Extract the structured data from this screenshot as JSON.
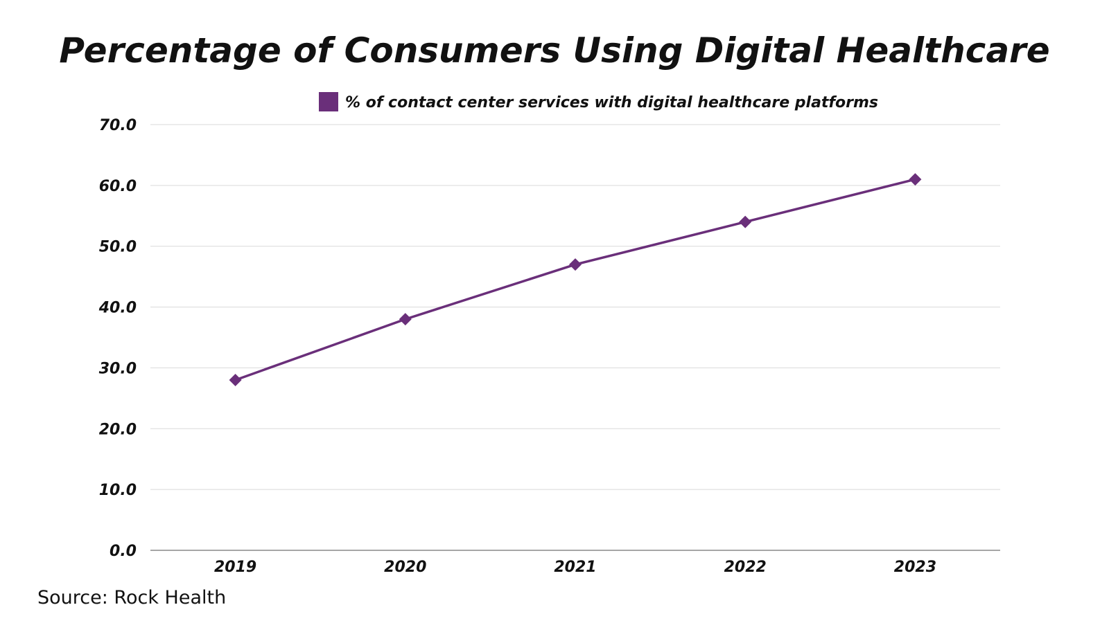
{
  "source": "Source: Rock Health",
  "chart_data": {
    "type": "line",
    "title": "Percentage of Consumers Using Digital Healthcare",
    "xlabel": "",
    "ylabel": "",
    "categories": [
      "2019",
      "2020",
      "2021",
      "2022",
      "2023"
    ],
    "series": [
      {
        "name": "% of contact center services with digital healthcare platforms",
        "values": [
          28,
          38,
          47,
          54,
          61
        ],
        "color": "#6a2f7a"
      }
    ],
    "ylim": [
      0,
      70
    ],
    "yticks": [
      "0.0",
      "10.0",
      "20.0",
      "30.0",
      "40.0",
      "50.0",
      "60.0",
      "70.0"
    ],
    "grid": true,
    "legend": "top-center",
    "marker": "diamond"
  }
}
